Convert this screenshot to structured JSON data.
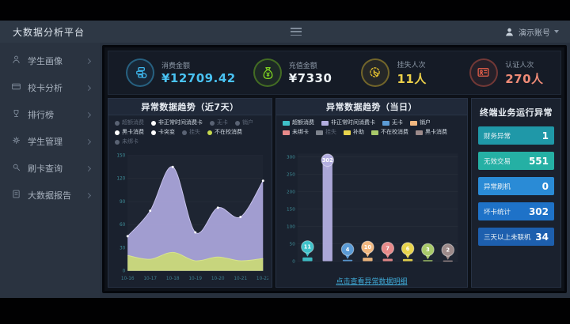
{
  "app": {
    "brand": "大数据分析平台",
    "user": "演示账号"
  },
  "sidebar": {
    "items": [
      {
        "label": "学生画像",
        "icon": "student-profile-icon"
      },
      {
        "label": "校卡分析",
        "icon": "card-analysis-icon"
      },
      {
        "label": "排行榜",
        "icon": "ranking-icon"
      },
      {
        "label": "学生管理",
        "icon": "student-manage-icon"
      },
      {
        "label": "刷卡查询",
        "icon": "swipe-query-icon"
      },
      {
        "label": "大数据报告",
        "icon": "report-icon"
      }
    ]
  },
  "stats": [
    {
      "label": "消费金额",
      "value": "¥12709.42",
      "accent": "#3eb8ef",
      "value_color": "#49c2f2",
      "icon": "coins-icon"
    },
    {
      "label": "充值金额",
      "value": "¥7330",
      "accent": "#7ed321",
      "value_color": "#edf3f6",
      "icon": "moneybag-icon"
    },
    {
      "label": "挂失人次",
      "value": "11人",
      "accent": "#e8c430",
      "value_color": "#ecd04a",
      "icon": "hand-click-icon"
    },
    {
      "label": "认证人次",
      "value": "270人",
      "accent": "#e8604a",
      "value_color": "#ee8a76",
      "icon": "id-card-icon"
    }
  ],
  "panels": {
    "week": {
      "title": "异常数据趋势（近7天）",
      "legend": [
        {
          "label": "超额消费",
          "dot": "#5a6374",
          "dim": true
        },
        {
          "label": "非正常时间消费卡",
          "dot": "#ffffff",
          "dim": false
        },
        {
          "label": "无卡",
          "dot": "#5a6374",
          "dim": true
        },
        {
          "label": "销户",
          "dot": "#5a6374",
          "dim": true
        },
        {
          "label": "黑卡消费",
          "dot": "#ffffff",
          "dim": false
        },
        {
          "label": "卡突变",
          "dot": "#ffffff",
          "dim": false
        },
        {
          "label": "挂失",
          "dot": "#5a6374",
          "dim": true
        },
        {
          "label": "不在校消费",
          "dot": "#c6d94d",
          "dim": false
        },
        {
          "label": "未绑卡",
          "dot": "#5a6374",
          "dim": true
        }
      ]
    },
    "today": {
      "title": "异常数据趋势（当日）",
      "legend": [
        {
          "label": "超额消费",
          "color": "#3fc1c9",
          "dim": false
        },
        {
          "label": "非正常时间消费卡",
          "color": "#b3aee0",
          "dim": false
        },
        {
          "label": "无卡",
          "color": "#5b9bd5",
          "dim": false
        },
        {
          "label": "销户",
          "color": "#f2b880",
          "dim": false
        },
        {
          "label": "未绑卡",
          "color": "#e88a8a",
          "dim": false
        },
        {
          "label": "挂失",
          "color": "#7d828c",
          "dim": true
        },
        {
          "label": "补助",
          "color": "#e8d44d",
          "dim": false
        },
        {
          "label": "不在校消费",
          "color": "#a8c96a",
          "dim": false
        },
        {
          "label": "黑卡消费",
          "color": "#9c8a8a",
          "dim": false
        }
      ],
      "footer_link": "点击查看异常数据明细"
    },
    "terminal": {
      "title": "终端业务运行异常",
      "rows": [
        {
          "label": "财务异常",
          "value": "1",
          "bg": "#1f98a8"
        },
        {
          "label": "无效交易",
          "value": "551",
          "bg": "#25b0a4"
        },
        {
          "label": "异常刷机",
          "value": "0",
          "bg": "#2a8bd6"
        },
        {
          "label": "坏卡统计",
          "value": "302",
          "bg": "#1e72c8"
        },
        {
          "label": "三天以上未联机",
          "value": "34",
          "bg": "#1d5fae"
        }
      ]
    }
  },
  "chart_data": [
    {
      "type": "area",
      "title": "异常数据趋势（近7天）",
      "x": [
        "10-16",
        "10-17",
        "10-18",
        "10-19",
        "10-20",
        "10-21",
        "10-22"
      ],
      "series": [
        {
          "name": "非正常时间消费卡",
          "values": [
            45,
            78,
            135,
            50,
            82,
            70,
            117
          ],
          "color": "#a9a3d9",
          "line": "#c7c2ec"
        },
        {
          "name": "不在校消费",
          "values": [
            20,
            15,
            24,
            13,
            18,
            13,
            16
          ],
          "color": "#c9d878",
          "line": "#d8e490"
        }
      ],
      "ylim": [
        0,
        150
      ],
      "yticks": [
        0,
        30,
        60,
        90,
        120,
        150
      ],
      "legend_position": "top",
      "grid": true
    },
    {
      "type": "bar",
      "title": "异常数据趋势（当日）",
      "categories": [
        "超额消费",
        "非正常时间消费卡",
        "无卡",
        "销户",
        "未绑卡",
        "补助",
        "不在校消费",
        "黑卡消费"
      ],
      "values": [
        11,
        302,
        4,
        10,
        7,
        6,
        3,
        2
      ],
      "colors": [
        "#3fc1c9",
        "#b3aee0",
        "#5b9bd5",
        "#f2b880",
        "#e88a8a",
        "#e8d44d",
        "#a8c96a",
        "#9c8a8a"
      ],
      "ylim": [
        0,
        310
      ],
      "yticks": [
        0,
        50,
        100,
        150,
        200,
        250,
        300
      ],
      "legend_position": "top",
      "grid": true
    }
  ]
}
